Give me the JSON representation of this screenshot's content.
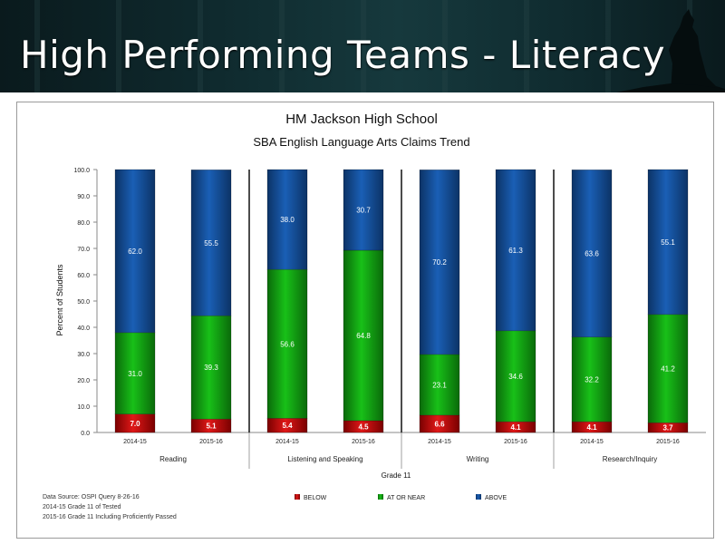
{
  "slide": {
    "title": "High Performing Teams - Literacy"
  },
  "footnotes": [
    "Data Source: OSPI Query 8-26-16",
    "2014-15 Grade 11 of Tested",
    "2015-16 Grade 11 Including Proficiently Passed"
  ],
  "colors": {
    "below": "#cc1111",
    "at_near": "#11a611",
    "above": "#1655a8",
    "banner": "#0f2a2e"
  },
  "chart_data": {
    "type": "bar",
    "stacked": true,
    "title": "HM Jackson High School",
    "subtitle": "SBA English Language Arts Claims Trend",
    "ylabel": "Percent of Students",
    "xlabel": "Grade 11",
    "ylim": [
      0,
      100
    ],
    "yticks": [
      "0.0",
      "10.0",
      "20.0",
      "30.0",
      "40.0",
      "50.0",
      "60.0",
      "70.0",
      "80.0",
      "90.0",
      "100.0"
    ],
    "grid": false,
    "legend_position": "bottom",
    "groups": [
      "Reading",
      "Listening and Speaking",
      "Writing",
      "Research/Inquiry"
    ],
    "categories": [
      "2014-15",
      "2015-16",
      "2014-15",
      "2015-16",
      "2014-15",
      "2015-16",
      "2014-15",
      "2015-16"
    ],
    "series": [
      {
        "name": "BELOW",
        "values": [
          7.0,
          5.1,
          5.4,
          4.5,
          6.6,
          4.1,
          4.1,
          3.7
        ]
      },
      {
        "name": "AT OR NEAR",
        "values": [
          31.0,
          39.3,
          56.6,
          64.8,
          23.1,
          34.6,
          32.2,
          41.2
        ]
      },
      {
        "name": "ABOVE",
        "values": [
          62.0,
          55.5,
          38.0,
          30.7,
          70.2,
          61.3,
          63.6,
          55.1
        ]
      }
    ]
  }
}
